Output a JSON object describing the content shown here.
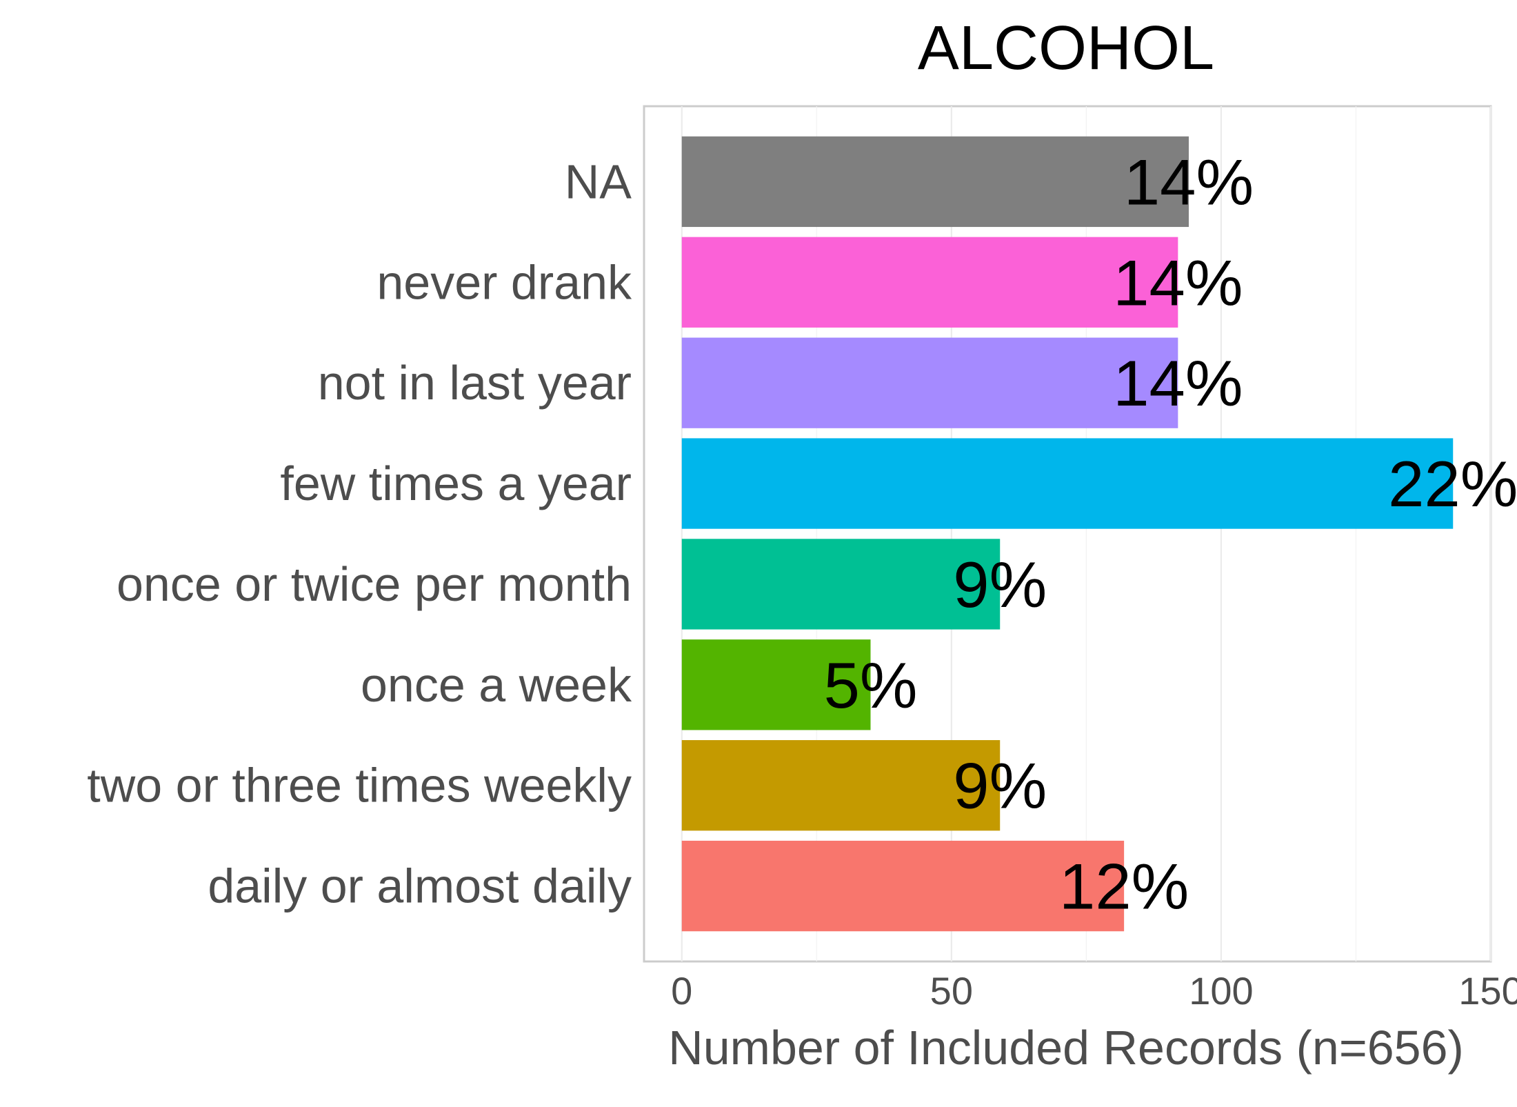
{
  "chart_data": {
    "type": "bar",
    "orientation": "horizontal",
    "title": "ALCOHOL",
    "xlabel": "Number of Included Records (n=656)",
    "ylabel": "",
    "xlim": [
      -7,
      150
    ],
    "x_ticks": [
      {
        "value": 0,
        "label": "0"
      },
      {
        "value": 50,
        "label": "50"
      },
      {
        "value": 100,
        "label": "100"
      },
      {
        "value": 150,
        "label": "150"
      }
    ],
    "grid": true,
    "legend": "none",
    "categories": [
      "NA",
      "never drank",
      "not in last year",
      "few times a year",
      "once or twice per month",
      "once a week",
      "two or three times weekly",
      "daily or almost daily"
    ],
    "values": [
      94,
      92,
      92,
      143,
      59,
      35,
      59,
      82
    ],
    "data_labels": [
      "14%",
      "14%",
      "14%",
      "22%",
      "9%",
      "5%",
      "9%",
      "12%"
    ],
    "colors": [
      "#7F7F7F",
      "#FB61D7",
      "#A58AFF",
      "#00B6EB",
      "#00C094",
      "#53B400",
      "#C49A00",
      "#F8766D"
    ]
  }
}
